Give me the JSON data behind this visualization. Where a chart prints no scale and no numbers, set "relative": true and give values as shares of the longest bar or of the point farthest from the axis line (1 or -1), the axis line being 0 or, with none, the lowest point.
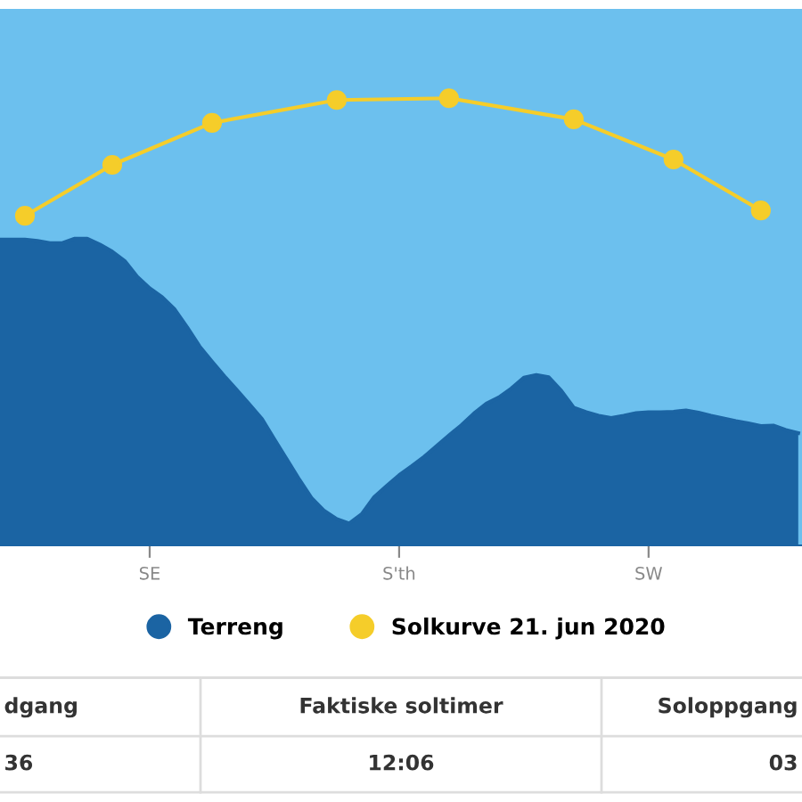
{
  "chart_data": {
    "type": "area",
    "relative": true,
    "tick_labels": "x",
    "grid": false,
    "legend": "bottom",
    "categories": [
      null,
      null,
      null,
      null,
      null,
      null,
      null,
      null,
      null,
      null,
      null,
      null,
      "SE",
      null,
      null,
      null,
      null,
      null,
      null,
      null,
      null,
      null,
      null,
      null,
      null,
      null,
      null,
      null,
      null,
      null,
      null,
      null,
      "S'th",
      null,
      null,
      null,
      null,
      null,
      null,
      null,
      null,
      null,
      null,
      null,
      null,
      null,
      null,
      null,
      null,
      null,
      null,
      null,
      "SW",
      null,
      null,
      null,
      null,
      null,
      null,
      null,
      null,
      null,
      null,
      null,
      null
    ],
    "series": [
      {
        "name": "Terreng",
        "color": "#1b64a3",
        "values": [
          0.684,
          0.684,
          0.684,
          0.681,
          0.676,
          0.676,
          0.686,
          0.686,
          0.673,
          0.657,
          0.636,
          0.601,
          0.575,
          0.555,
          0.528,
          0.488,
          0.445,
          0.411,
          0.378,
          0.347,
          0.315,
          0.283,
          0.237,
          0.192,
          0.147,
          0.105,
          0.077,
          0.059,
          0.049,
          0.07,
          0.108,
          0.133,
          0.157,
          0.177,
          0.198,
          0.222,
          0.246,
          0.269,
          0.295,
          0.317,
          0.331,
          0.351,
          0.375,
          0.381,
          0.376,
          0.346,
          0.308,
          0.298,
          0.29,
          0.285,
          0.29,
          0.296,
          0.298,
          0.298,
          0.299,
          0.302,
          0.297,
          0.29,
          0.284,
          0.278,
          0.273,
          0.267,
          0.268,
          0.258,
          0.251
        ]
      },
      {
        "name": "Solkurve 21. jun 2020",
        "type": "line",
        "color": "#f5cd2a",
        "marker": "circle",
        "line_style": "solid",
        "values": [
          null,
          null,
          0.737,
          null,
          null,
          null,
          null,
          null,
          null,
          0.851,
          null,
          null,
          null,
          null,
          null,
          null,
          null,
          0.945,
          null,
          null,
          null,
          null,
          null,
          null,
          null,
          null,
          null,
          0.996,
          null,
          null,
          null,
          null,
          null,
          null,
          null,
          null,
          1.0,
          null,
          null,
          null,
          null,
          null,
          null,
          null,
          null,
          null,
          0.953,
          null,
          null,
          null,
          null,
          null,
          null,
          null,
          0.863,
          null,
          null,
          null,
          null,
          null,
          null,
          0.749,
          null,
          null,
          null
        ]
      }
    ],
    "annotations": [
      "dgang",
      "Faktiske soltimer",
      "Soloppgang",
      "36",
      "12:06",
      "03"
    ]
  }
}
